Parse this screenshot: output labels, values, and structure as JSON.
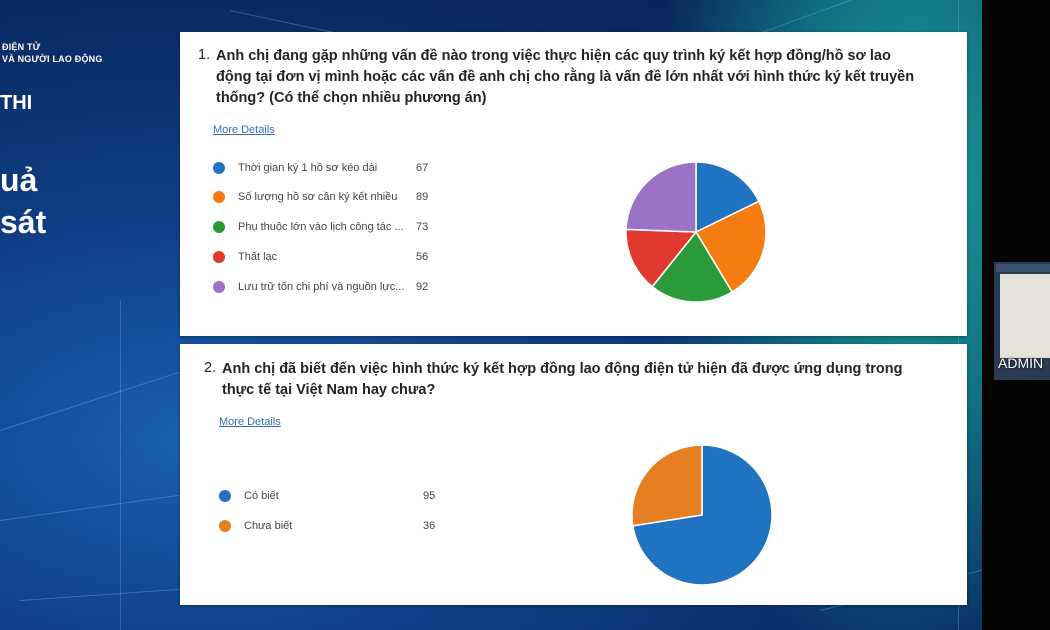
{
  "slide": {
    "org_line1": "ĐIỆN TỬ",
    "org_line2": "VÀ NGƯỜI LAO ĐỘNG",
    "heading_partial": "THI",
    "big_text_line1": "uả",
    "big_text_line2": "sát"
  },
  "participant": {
    "name": "ADMIN"
  },
  "question1": {
    "number": "1.",
    "text_line1": "Anh chị đang gặp những vấn đề nào trong việc thực hiện các quy trình ký kết hợp đồng/hồ sơ lao",
    "text_line2": "động tại đơn vị mình hoặc các vấn đề anh chị cho rằng là vấn đề lớn nhất với hình thức ký kết truyền",
    "text_line3": "thống? (Có thể chọn nhiều phương án)",
    "more_details": "More Details"
  },
  "question2": {
    "number": "2.",
    "text_line1": "Anh chị đã biết đến việc hình thức ký kết hợp đồng lao động điện tử hiện đã được ứng dụng trong",
    "text_line2": "thực tế tại Việt Nam hay chưa?",
    "more_details": "More Details"
  },
  "chart_data": [
    {
      "type": "pie",
      "categories": [
        "Thời gian ký 1 hồ sơ kéo dài",
        "Số lượng hồ sơ cần ký kết nhiều",
        "Phụ thuộc lớn vào lịch công tác ...",
        "Thất lạc",
        "Lưu trữ tốn chi phí và nguồn lực..."
      ],
      "values": [
        67,
        89,
        73,
        56,
        92
      ],
      "colors": [
        "#1f73c0",
        "#f47c10",
        "#2a9a3a",
        "#e03a30",
        "#9a72c6"
      ]
    },
    {
      "type": "pie",
      "categories": [
        "Có biết",
        "Chưa biết"
      ],
      "values": [
        95,
        36
      ],
      "colors": [
        "#1f73c0",
        "#e67e22"
      ]
    }
  ]
}
